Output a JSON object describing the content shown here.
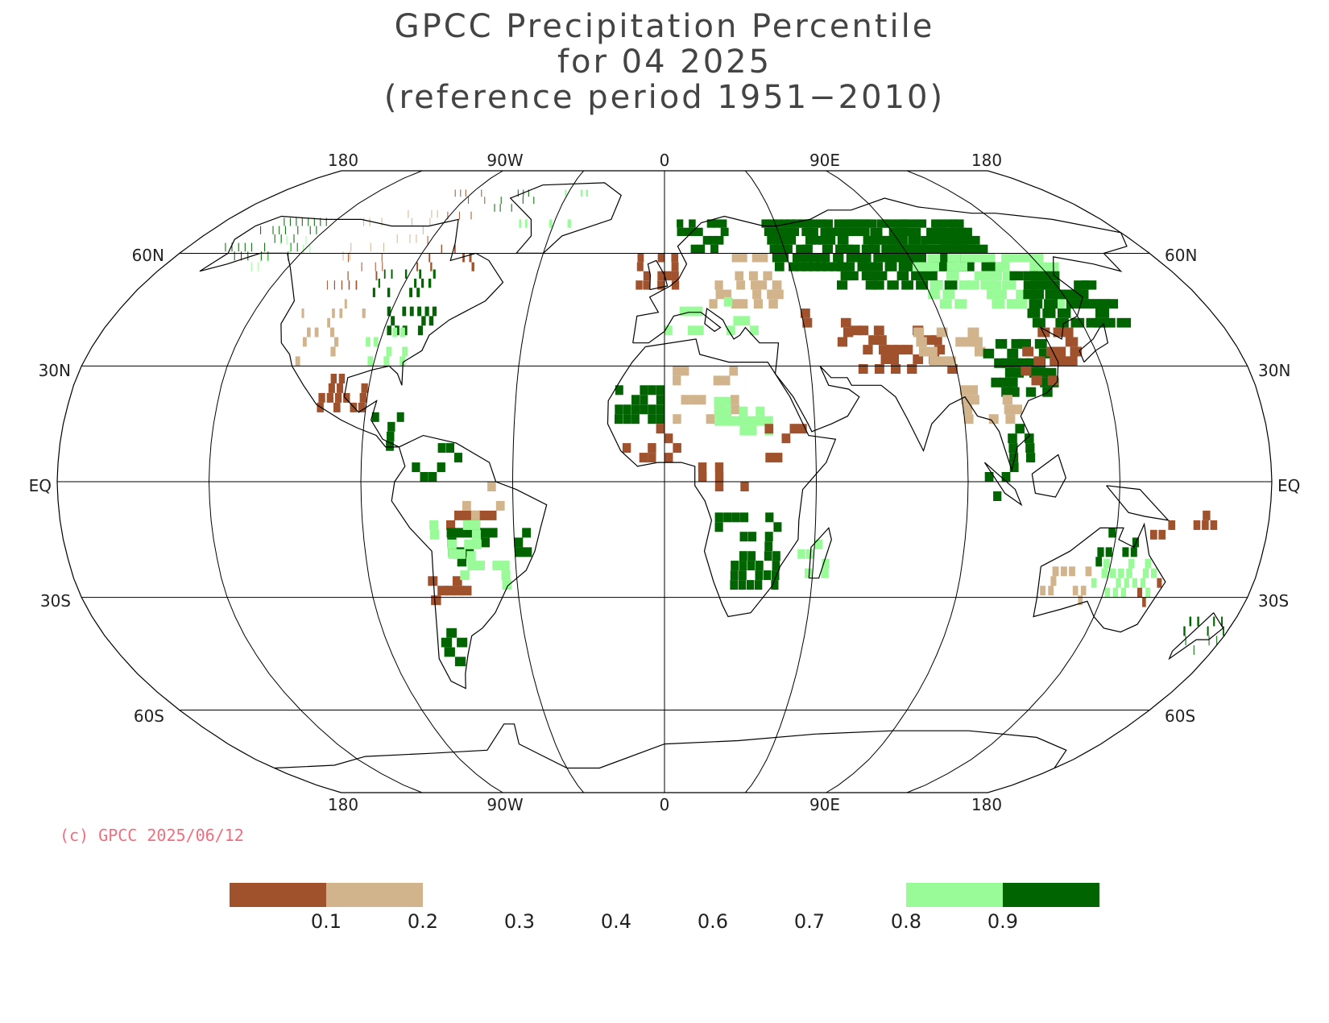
{
  "title": {
    "line1": "GPCC Precipitation Percentile",
    "line2": "for 04 2025",
    "line3": "(reference period 1951−2010)"
  },
  "axes": {
    "longitude_labels": [
      "180",
      "90W",
      "0",
      "90E",
      "180"
    ],
    "latitude_labels": [
      "60N",
      "30N",
      "EQ",
      "30S",
      "60S"
    ],
    "projection": "Robinson"
  },
  "credit": "(c) GPCC 2025/06/12",
  "colors": {
    "very_dry": "#a0522d",
    "dry": "#d2b48c",
    "wet": "#98fb98",
    "very_wet": "#006400",
    "coastline": "#000000",
    "grid": "#000000"
  },
  "legend": {
    "ticks": [
      "0.1",
      "0.2",
      "0.3",
      "0.4",
      "0.6",
      "0.7",
      "0.8",
      "0.9"
    ],
    "classes": [
      {
        "range": "< 0.1",
        "color": "#a0522d"
      },
      {
        "range": "0.1 – 0.2",
        "color": "#d2b48c"
      },
      {
        "range": "0.2 – 0.3",
        "color": "none"
      },
      {
        "range": "0.3 – 0.4",
        "color": "none"
      },
      {
        "range": "0.4 – 0.6",
        "color": "none"
      },
      {
        "range": "0.6 – 0.7",
        "color": "none"
      },
      {
        "range": "0.7 – 0.8",
        "color": "none"
      },
      {
        "range": "0.8 – 0.9",
        "color": "#98fb98"
      },
      {
        "range": "> 0.9",
        "color": "#006400"
      }
    ]
  }
}
